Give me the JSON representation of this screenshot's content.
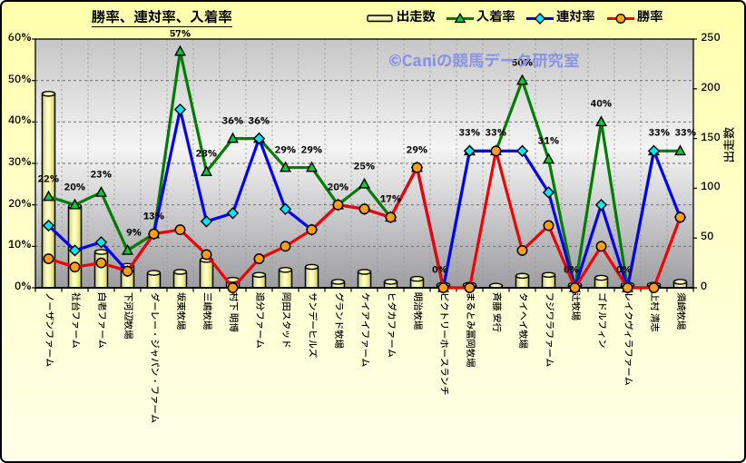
{
  "window": {
    "background_top": "#ffffae",
    "background_bottom": "#ffffe9",
    "border_color": "#000000"
  },
  "title": "勝率、連対率、入着率",
  "watermark": {
    "text": "©Caniの競馬データ研究室",
    "color": "#8b94e4"
  },
  "legend": {
    "items": [
      {
        "key": "starts",
        "label": "出走数"
      },
      {
        "key": "place-rate",
        "label": "入着率"
      },
      {
        "key": "quinella-rate",
        "label": "連対率"
      },
      {
        "key": "win-rate",
        "label": "勝率"
      }
    ]
  },
  "chart_data": {
    "type": "bar+line",
    "title": "勝率、連対率、入着率",
    "categories": [
      "ノーザンファーム",
      "社台ファーム",
      "白老ファーム",
      "下河辺牧場",
      "ダーレー・ジャパン・ファーム",
      "坂東牧場",
      "三嶋牧場",
      "村下 明博",
      "追分ファーム",
      "岡田スタッド",
      "サンデーヒルズ",
      "グランド牧場",
      "ケイアイファーム",
      "ヒダカファーム",
      "明治牧場",
      "ビクトリーホースランチ",
      "まるとみ冨岡牧場",
      "斉藤 安行",
      "タイヘイ牧場",
      "フジワラファーム",
      "辻牧場",
      "ゴドルフィン",
      "レイクヴィラファーム",
      "上村 清志",
      "須崎牧場"
    ],
    "series": [
      {
        "name": "出走数",
        "key": "starts",
        "type": "bar",
        "axis": "right",
        "fill": "#ffffa0",
        "fill_light": "#ffffd8",
        "fill_dark": "#caca6e",
        "stroke": "#000000",
        "values": [
          195,
          82,
          36,
          22,
          15,
          16,
          28,
          8,
          13,
          18,
          21,
          6,
          16,
          6,
          9,
          3,
          3,
          2,
          12,
          13,
          3,
          10,
          3,
          3,
          6
        ]
      },
      {
        "name": "入着率",
        "key": "place-rate",
        "type": "line",
        "marker": "triangle",
        "axis": "left",
        "line_color": "#007c00",
        "marker_fill": "#00cc33",
        "marker_stroke": "#000000",
        "values": [
          22,
          20,
          23,
          9,
          13,
          57,
          28,
          36,
          36,
          29,
          29,
          20,
          25,
          17,
          29,
          0,
          33,
          33,
          50,
          31,
          0,
          40,
          0,
          33,
          33
        ],
        "data_labels": [
          "22%",
          "20%",
          "23%",
          "9%",
          "13%",
          "57%",
          "28%",
          "36%",
          "36%",
          "29%",
          "29%",
          "20%",
          "25%",
          "17%",
          "29%",
          "0%",
          "33%",
          "33%",
          "50%",
          "31%",
          "0%",
          "40%",
          "0%",
          "33%",
          "33%"
        ]
      },
      {
        "name": "連対率",
        "key": "quinella-rate",
        "type": "line",
        "marker": "diamond",
        "axis": "left",
        "line_color": "#0000f0",
        "marker_fill": "#00e8ff",
        "marker_stroke": "#000000",
        "values": [
          15,
          9,
          11,
          4,
          13,
          43,
          16,
          18,
          36,
          19,
          14,
          20,
          19,
          17,
          29,
          0,
          33,
          33,
          33,
          23,
          0,
          20,
          0,
          33,
          17
        ]
      },
      {
        "name": "勝率",
        "key": "win-rate",
        "type": "line",
        "marker": "circle",
        "axis": "left",
        "line_color": "#f00000",
        "marker_fill": "#ffa018",
        "marker_stroke": "#000000",
        "values": [
          7,
          5,
          6,
          4,
          13,
          14,
          8,
          0,
          7,
          10,
          14,
          20,
          19,
          17,
          29,
          0,
          0,
          33,
          9,
          15,
          0,
          10,
          0,
          0,
          17
        ]
      }
    ],
    "left_axis": {
      "min": 0,
      "max": 60,
      "step": 10,
      "tick_labels": [
        "0%",
        "10%",
        "20%",
        "30%",
        "40%",
        "50%",
        "60%"
      ]
    },
    "right_axis": {
      "min": 0,
      "max": 250,
      "step": 50,
      "tick_labels": [
        "0",
        "50",
        "100",
        "150",
        "200",
        "250"
      ],
      "title": "出走数"
    },
    "grid": true,
    "legend_position": "top-right",
    "plot_background": {
      "top": "#c6c6c6",
      "middle": "#f4f4f4",
      "bottom": "#9d9da1"
    }
  }
}
